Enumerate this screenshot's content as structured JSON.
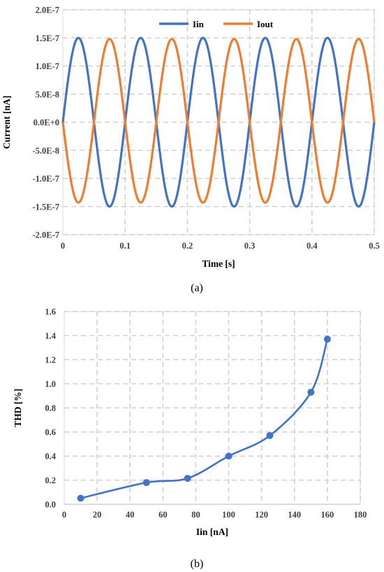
{
  "chart_data": [
    {
      "type": "line",
      "caption": "(a)",
      "xlabel": "Time [s]",
      "ylabel": "Current [nA]",
      "xlim": [
        0,
        0.5
      ],
      "ylim": [
        -2e-07,
        2e-07
      ],
      "x_ticks": [
        0,
        0.1,
        0.2,
        0.3,
        0.4,
        0.5
      ],
      "x_tick_labels": [
        "0",
        "0.1",
        "0.2",
        "0.3",
        "0.4",
        "0.5"
      ],
      "y_ticks": [
        2e-07,
        1.5e-07,
        1e-07,
        5e-08,
        0,
        -5e-08,
        -1e-07,
        -1.5e-07,
        -2e-07
      ],
      "y_tick_labels": [
        "2.0E-7",
        "1.5E-7",
        "1.0E-7",
        "5.0E-8",
        "0.0E+0",
        "-5.0E-8",
        "-1.0E-7",
        "-1.5E-7",
        "-2.0E-7"
      ],
      "grid": true,
      "legend": "top-right",
      "series": [
        {
          "name": "Iin",
          "color": "#4472C4",
          "frequency_hz": 10,
          "amplitude": 1.5e-07,
          "phase": "sine"
        },
        {
          "name": "Iout",
          "color": "#ED7D31",
          "frequency_hz": 10,
          "amplitude_positive": 1.48e-07,
          "amplitude_negative": 1.43e-07,
          "phase": "inverted sine"
        }
      ]
    },
    {
      "type": "line",
      "caption": "(b)",
      "xlabel": "Iin [nA]",
      "ylabel": "THD [%]",
      "xlim": [
        0,
        180
      ],
      "ylim": [
        0,
        1.6
      ],
      "x_ticks": [
        0,
        20,
        40,
        60,
        80,
        100,
        120,
        140,
        160,
        180
      ],
      "x_tick_labels": [
        "0",
        "20",
        "40",
        "60",
        "80",
        "100",
        "120",
        "140",
        "160",
        "180"
      ],
      "y_ticks": [
        0,
        0.2,
        0.4,
        0.6,
        0.8,
        1.0,
        1.2,
        1.4,
        1.6
      ],
      "y_tick_labels": [
        "0.0",
        "0.2",
        "0.4",
        "0.6",
        "0.8",
        "1.0",
        "1.2",
        "1.4",
        "1.6"
      ],
      "grid": true,
      "smooth": true,
      "markers": true,
      "series": [
        {
          "color": "#4472C4",
          "x": [
            10,
            50,
            75,
            100,
            125,
            150,
            160
          ],
          "y": [
            0.05,
            0.18,
            0.215,
            0.4,
            0.57,
            0.93,
            1.37
          ]
        }
      ]
    }
  ]
}
